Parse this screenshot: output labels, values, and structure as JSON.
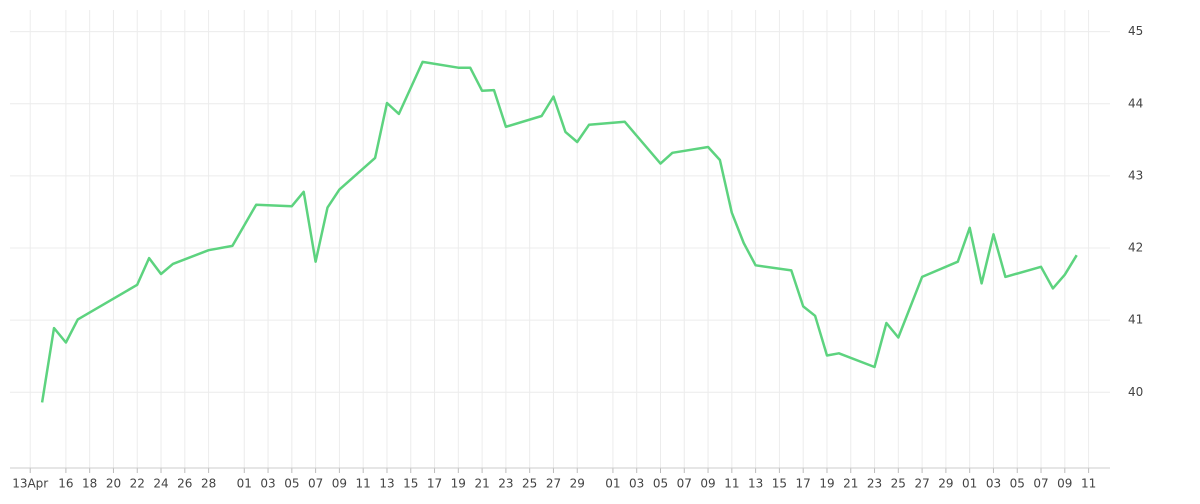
{
  "chart_data": {
    "type": "line",
    "color": "#5dd37f",
    "grid": true,
    "x": [
      1,
      2,
      3,
      4,
      9,
      10,
      11,
      12,
      15,
      17,
      19,
      22,
      23,
      24,
      25,
      26,
      29,
      30,
      31,
      33,
      36,
      37,
      38,
      39,
      40,
      43,
      44,
      45,
      46,
      47,
      50,
      53,
      54,
      57,
      58,
      59,
      60,
      61,
      64,
      65,
      66,
      67,
      68,
      71,
      72,
      73,
      75,
      78,
      79,
      80,
      81,
      82,
      85,
      86,
      87,
      88
    ],
    "values": [
      39.86,
      40.89,
      40.69,
      41.01,
      41.49,
      41.86,
      41.64,
      41.78,
      41.97,
      42.03,
      42.6,
      42.58,
      42.78,
      41.81,
      42.56,
      42.81,
      43.25,
      44.01,
      43.86,
      44.58,
      44.5,
      44.5,
      44.18,
      44.19,
      43.68,
      43.83,
      44.1,
      43.61,
      43.47,
      43.71,
      43.75,
      43.17,
      43.32,
      43.4,
      43.22,
      42.49,
      42.07,
      41.76,
      41.69,
      41.19,
      41.06,
      40.51,
      40.54,
      40.35,
      40.96,
      40.76,
      41.6,
      41.81,
      42.28,
      41.51,
      42.19,
      41.6,
      41.74,
      41.44,
      41.63,
      41.9
    ],
    "xlim": [
      -1.7,
      90.8
    ],
    "xticks": [
      {
        "value": 0,
        "label": "13Apr"
      },
      {
        "value": 3,
        "label": "16"
      },
      {
        "value": 5,
        "label": "18"
      },
      {
        "value": 7,
        "label": "20"
      },
      {
        "value": 9,
        "label": "22"
      },
      {
        "value": 11,
        "label": "24"
      },
      {
        "value": 13,
        "label": "26"
      },
      {
        "value": 15,
        "label": "28"
      },
      {
        "value": 18,
        "label": "01"
      },
      {
        "value": 20,
        "label": "03"
      },
      {
        "value": 22,
        "label": "05"
      },
      {
        "value": 24,
        "label": "07"
      },
      {
        "value": 26,
        "label": "09"
      },
      {
        "value": 28,
        "label": "11"
      },
      {
        "value": 30,
        "label": "13"
      },
      {
        "value": 32,
        "label": "15"
      },
      {
        "value": 34,
        "label": "17"
      },
      {
        "value": 36,
        "label": "19"
      },
      {
        "value": 38,
        "label": "21"
      },
      {
        "value": 40,
        "label": "23"
      },
      {
        "value": 42,
        "label": "25"
      },
      {
        "value": 44,
        "label": "27"
      },
      {
        "value": 46,
        "label": "29"
      },
      {
        "value": 49,
        "label": "01"
      },
      {
        "value": 51,
        "label": "03"
      },
      {
        "value": 53,
        "label": "05"
      },
      {
        "value": 55,
        "label": "07"
      },
      {
        "value": 57,
        "label": "09"
      },
      {
        "value": 59,
        "label": "11"
      },
      {
        "value": 61,
        "label": "13"
      },
      {
        "value": 63,
        "label": "15"
      },
      {
        "value": 65,
        "label": "17"
      },
      {
        "value": 67,
        "label": "19"
      },
      {
        "value": 69,
        "label": "21"
      },
      {
        "value": 71,
        "label": "23"
      },
      {
        "value": 73,
        "label": "25"
      },
      {
        "value": 75,
        "label": "27"
      },
      {
        "value": 77,
        "label": "29"
      },
      {
        "value": 79,
        "label": "01"
      },
      {
        "value": 81,
        "label": "03"
      },
      {
        "value": 83,
        "label": "05"
      },
      {
        "value": 85,
        "label": "07"
      },
      {
        "value": 87,
        "label": "09"
      },
      {
        "value": 89,
        "label": "11"
      }
    ],
    "ylim": [
      38.95,
      45.3
    ],
    "yticks": [
      40,
      41,
      42,
      43,
      44,
      45
    ]
  }
}
